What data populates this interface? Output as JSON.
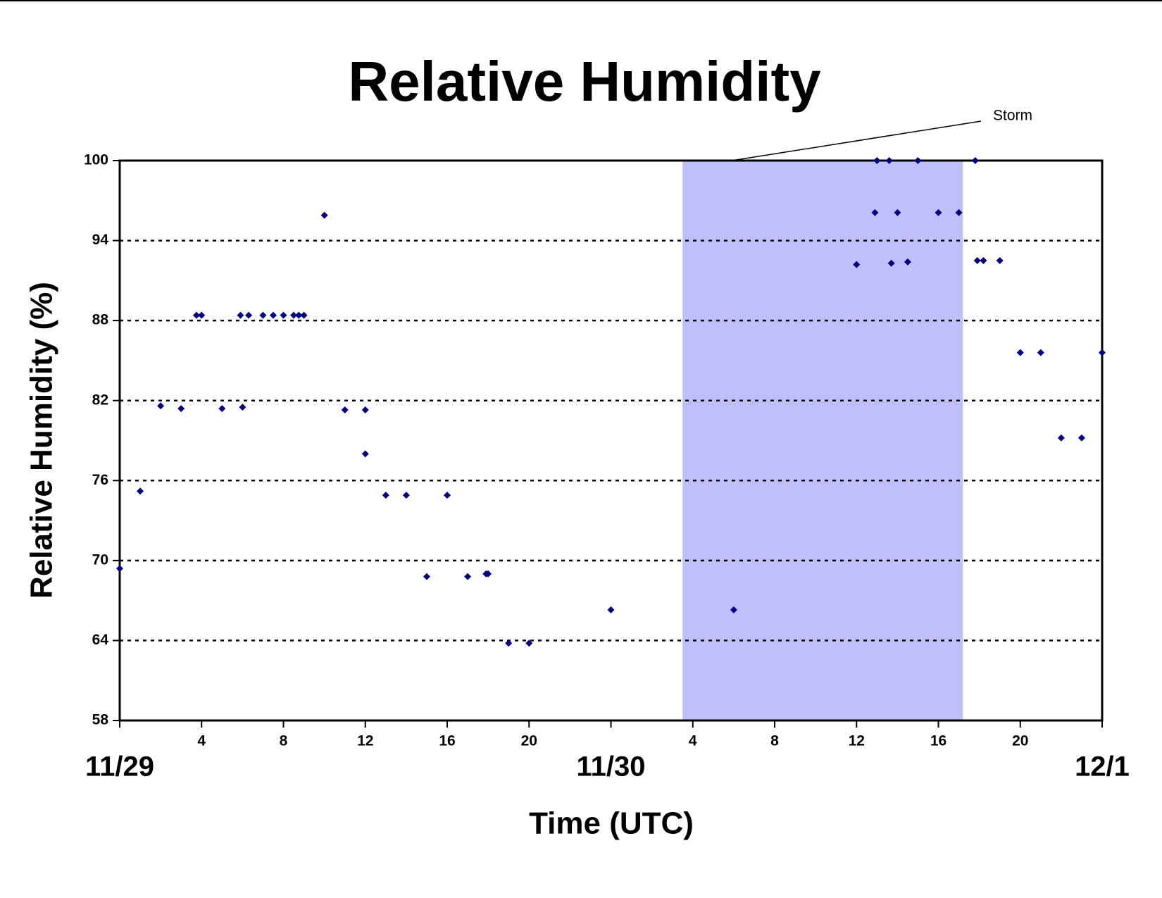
{
  "chart_data": {
    "type": "scatter",
    "title": "Relative Humidity",
    "xlabel": "Time (UTC)",
    "ylabel": "Relative Humidity (%)",
    "annotation": "Storm",
    "shaded_region": [
      27.5,
      41.2
    ],
    "shaded_color": "#bfbffd",
    "color": "#000080",
    "xlim": [
      0,
      48
    ],
    "ylim": [
      58,
      100
    ],
    "xticks": [
      {
        "value": 0,
        "label": "11/29"
      },
      4,
      8,
      12,
      16,
      20,
      {
        "value": 24,
        "label": "11/30"
      },
      {
        "value": 28,
        "label": "4"
      },
      {
        "value": 32,
        "label": "8"
      },
      {
        "value": 36,
        "label": "12"
      },
      {
        "value": 40,
        "label": "16"
      },
      {
        "value": 44,
        "label": "20"
      },
      {
        "value": 48,
        "label": "12/1"
      }
    ],
    "yticks": [
      58,
      64,
      70,
      76,
      82,
      88,
      94,
      100
    ],
    "grid": true,
    "x": [
      0,
      1,
      2,
      3,
      3.75,
      4,
      5,
      5.9,
      6,
      6.3,
      7,
      7.5,
      8,
      8.5,
      8.75,
      9,
      10,
      11,
      12,
      12,
      13,
      14,
      15,
      16,
      17,
      17.9,
      18,
      19,
      20,
      24,
      30,
      36,
      36.9,
      37,
      37.6,
      37.7,
      38,
      38.5,
      39,
      40,
      41,
      41.8,
      41.9,
      42.2,
      43,
      44,
      45,
      46,
      47,
      48
    ],
    "values": [
      69.4,
      75.2,
      81.6,
      81.4,
      88.4,
      88.4,
      81.4,
      88.4,
      81.5,
      88.4,
      88.4,
      88.4,
      88.4,
      88.4,
      88.4,
      88.4,
      95.9,
      81.3,
      81.3,
      78.0,
      74.9,
      74.9,
      68.8,
      74.9,
      68.8,
      69.0,
      69.0,
      63.8,
      63.8,
      66.3,
      66.3,
      92.2,
      96.1,
      100,
      100,
      92.3,
      96.1,
      92.4,
      100,
      96.1,
      96.1,
      100,
      92.5,
      92.5,
      92.5,
      85.6,
      85.6,
      79.2,
      79.2,
      85.6
    ]
  }
}
